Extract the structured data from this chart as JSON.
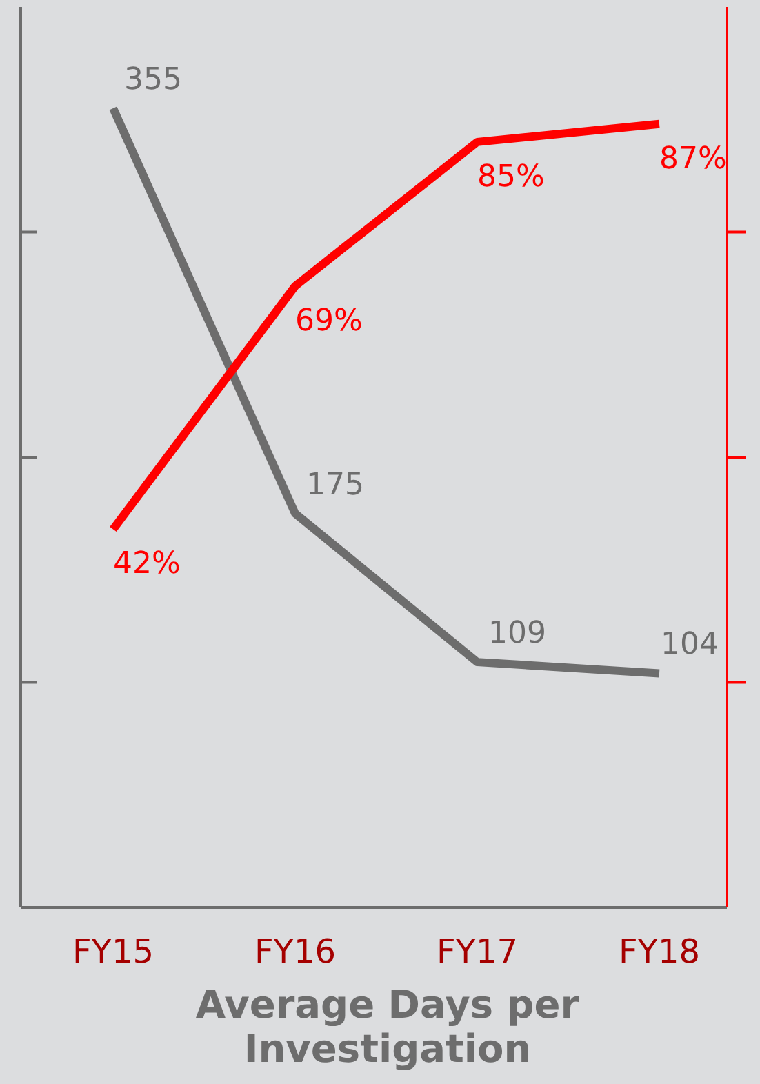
{
  "chart_data": {
    "type": "line",
    "xlabel": "Average Days per Investigation",
    "categories": [
      "FY15",
      "FY16",
      "FY17",
      "FY18"
    ],
    "series": [
      {
        "color": "#6d6d6d",
        "values": [
          355,
          175,
          109,
          104
        ],
        "axis": "y"
      },
      {
        "color": "#ff0000",
        "values": [
          42,
          69,
          85,
          87
        ],
        "axis": "y2",
        "value_labels": [
          "42%",
          "69%",
          "85%",
          "87%"
        ]
      }
    ],
    "data_labels": true,
    "ylim": [
      0,
      400
    ],
    "yticks": [
      {
        "value": 100,
        "label": null
      },
      {
        "value": 200,
        "label": null
      },
      {
        "value": 300,
        "label": null
      }
    ],
    "y2lim": [
      0,
      100
    ],
    "y2ticks": [
      {
        "value": 25,
        "label": null
      },
      {
        "value": 50,
        "label": null
      },
      {
        "value": 75,
        "label": null
      }
    ]
  }
}
